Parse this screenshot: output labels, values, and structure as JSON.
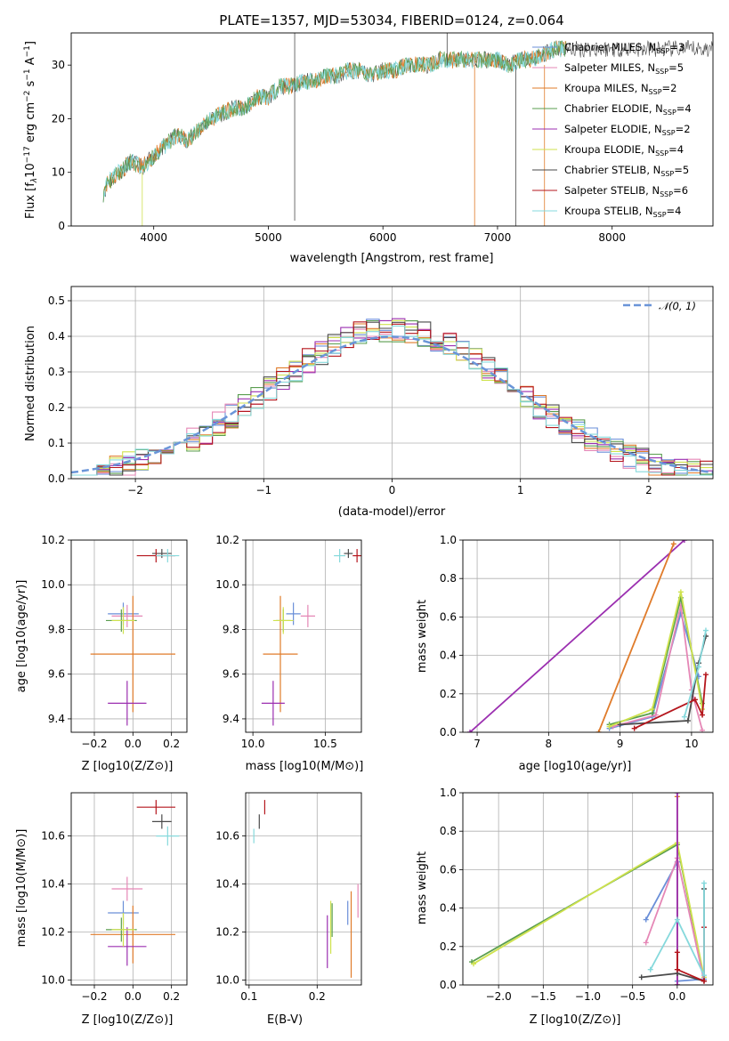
{
  "colors": {
    "chabrier_miles": "#6a8fd8",
    "salpeter_miles": "#e587b6",
    "kroupa_miles": "#e07b2a",
    "chabrier_elodie": "#5a9e4f",
    "salpeter_elodie": "#9b2fb0",
    "kroupa_elodie": "#cfe24e",
    "chabrier_stelib": "#4a4a4a",
    "salpeter_stelib": "#b5161d",
    "kroupa_stelib": "#86d9dc",
    "gauss": "#6a95d8",
    "grid": "#b0b0b0"
  },
  "chart_data": [
    {
      "id": "spectrum",
      "type": "line",
      "title": "PLATE=1357, MJD=53034, FIBERID=0124, z=0.064",
      "xlabel": "wavelength [Angstrom, rest frame]",
      "ylabel": "Flux [f",
      "ylabel_parts": [
        "Flux [f",
        "λ",
        "10",
        "−17",
        " erg cm",
        "−2",
        " s",
        "−1",
        " A",
        "−1",
        "]"
      ],
      "xlim": [
        3280,
        8880
      ],
      "ylim": [
        0,
        36
      ],
      "xticks": [
        4000,
        5000,
        6000,
        7000,
        8000
      ],
      "yticks": [
        0,
        10,
        20,
        30
      ],
      "grid": false,
      "legend_position": "right",
      "x": [
        3560,
        3600,
        3700,
        3800,
        3900,
        4000,
        4100,
        4200,
        4300,
        4400,
        4500,
        4600,
        4700,
        4800,
        4900,
        5000,
        5100,
        5200,
        5300,
        5400,
        5500,
        5600,
        5700,
        5800,
        5900,
        6000,
        6100,
        6200,
        6300,
        6400,
        6500,
        6600,
        6700,
        6800,
        6900,
        7000,
        7100,
        7200,
        7300,
        7400,
        7500,
        7600
      ],
      "y": [
        6,
        8,
        10,
        12,
        11,
        13,
        15,
        17,
        16,
        18,
        20,
        21,
        22,
        22,
        24,
        24,
        26,
        26,
        27,
        27,
        28,
        28,
        29,
        29,
        28,
        29,
        29,
        30,
        30,
        30,
        31,
        31,
        31,
        31,
        31,
        31,
        30,
        31,
        31,
        32,
        33,
        33
      ],
      "legend": [
        {
          "pre": "Chabrier MILES, N",
          "sub": "SSP",
          "post": "=3",
          "color": "chabrier_miles"
        },
        {
          "pre": "Salpeter MILES, N",
          "sub": "SSP",
          "post": "=5",
          "color": "salpeter_miles"
        },
        {
          "pre": "Kroupa MILES, N",
          "sub": "SSP",
          "post": "=2",
          "color": "kroupa_miles"
        },
        {
          "pre": "Chabrier ELODIE, N",
          "sub": "SSP",
          "post": "=4",
          "color": "chabrier_elodie"
        },
        {
          "pre": "Salpeter ELODIE, N",
          "sub": "SSP",
          "post": "=2",
          "color": "salpeter_elodie"
        },
        {
          "pre": "Kroupa ELODIE, N",
          "sub": "SSP",
          "post": "=4",
          "color": "kroupa_elodie"
        },
        {
          "pre": "Chabrier STELIB, N",
          "sub": "SSP",
          "post": "=5",
          "color": "chabrier_stelib"
        },
        {
          "pre": "Salpeter STELIB, N",
          "sub": "SSP",
          "post": "=6",
          "color": "salpeter_stelib"
        },
        {
          "pre": "Kroupa STELIB, N",
          "sub": "SSP",
          "post": "=4",
          "color": "kroupa_stelib"
        }
      ]
    },
    {
      "id": "residuals",
      "type": "bar",
      "xlabel": "(data-model)/error",
      "ylabel": "Normed distribution",
      "xlim": [
        -2.5,
        2.5
      ],
      "ylim": [
        0,
        0.54
      ],
      "xticks": [
        -2,
        -1,
        0,
        1,
        2
      ],
      "xtick_labels": [
        "−2",
        "−1",
        "0",
        "1",
        "2"
      ],
      "yticks": [
        0.0,
        0.1,
        0.2,
        0.3,
        0.4,
        0.5
      ],
      "ytick_labels": [
        "0.0",
        "0.1",
        "0.2",
        "0.3",
        "0.4",
        "0.5"
      ],
      "grid": true,
      "legend_position": "top-right",
      "gauss_label": "𝒩(0, 1)",
      "bin_width": 0.1,
      "bin_start": -2.5
    },
    {
      "id": "age_vs_Z",
      "type": "scatter",
      "xlabel": "Z [log10(Z/Z⊙)]",
      "ylabel": "age  [log10(age/yr)]",
      "xlim": [
        -0.32,
        0.28
      ],
      "ylim": [
        9.34,
        10.2
      ],
      "xticks": [
        -0.2,
        0.0,
        0.2
      ],
      "xtick_labels": [
        "−0.2",
        "0.0",
        "0.2"
      ],
      "yticks": [
        9.4,
        9.6,
        9.8,
        10.0,
        10.2
      ],
      "ytick_labels": [
        "9.4",
        "9.6",
        "9.8",
        "10.0",
        "10.2"
      ],
      "grid": true,
      "points": [
        {
          "x": -0.05,
          "xerr": 0.08,
          "y": 9.87,
          "yerr": 0.05,
          "color": "chabrier_miles"
        },
        {
          "x": -0.03,
          "xerr": 0.08,
          "y": 9.86,
          "yerr": 0.05,
          "color": "salpeter_miles"
        },
        {
          "x": 0.0,
          "xerr": 0.22,
          "y": 9.69,
          "yerr": 0.26,
          "color": "kroupa_miles"
        },
        {
          "x": -0.06,
          "xerr": 0.08,
          "y": 9.84,
          "yerr": 0.05,
          "color": "chabrier_elodie"
        },
        {
          "x": -0.03,
          "xerr": 0.1,
          "y": 9.47,
          "yerr": 0.1,
          "color": "salpeter_elodie"
        },
        {
          "x": -0.05,
          "xerr": 0.06,
          "y": 9.84,
          "yerr": 0.06,
          "color": "kroupa_elodie"
        },
        {
          "x": 0.15,
          "xerr": 0.05,
          "y": 10.14,
          "yerr": 0.02,
          "color": "chabrier_stelib"
        },
        {
          "x": 0.12,
          "xerr": 0.1,
          "y": 10.13,
          "yerr": 0.03,
          "color": "salpeter_stelib"
        },
        {
          "x": 0.18,
          "xerr": 0.06,
          "y": 10.13,
          "yerr": 0.03,
          "color": "kroupa_stelib"
        }
      ]
    },
    {
      "id": "age_vs_mass",
      "type": "scatter",
      "xlabel": "mass [log10(M/M⊙)]",
      "ylabel": "",
      "xlim": [
        9.95,
        10.75
      ],
      "ylim": [
        9.34,
        10.2
      ],
      "xticks": [
        10.0,
        10.5
      ],
      "xtick_labels": [
        "10.0",
        "10.5"
      ],
      "yticks": [
        9.4,
        9.6,
        9.8,
        10.0,
        10.2
      ],
      "ytick_labels": [
        "9.4",
        "9.6",
        "9.8",
        "10.0",
        "10.2"
      ],
      "grid": true,
      "points": [
        {
          "x": 10.28,
          "xerr": 0.05,
          "y": 9.87,
          "yerr": 0.05,
          "color": "chabrier_miles"
        },
        {
          "x": 10.38,
          "xerr": 0.05,
          "y": 9.86,
          "yerr": 0.05,
          "color": "salpeter_miles"
        },
        {
          "x": 10.19,
          "xerr": 0.12,
          "y": 9.69,
          "yerr": 0.26,
          "color": "kroupa_miles"
        },
        {
          "x": 10.21,
          "xerr": 0.05,
          "y": 9.84,
          "yerr": 0.05,
          "color": "chabrier_elodie"
        },
        {
          "x": 10.14,
          "xerr": 0.08,
          "y": 9.47,
          "yerr": 0.1,
          "color": "salpeter_elodie"
        },
        {
          "x": 10.21,
          "xerr": 0.07,
          "y": 9.84,
          "yerr": 0.06,
          "color": "kroupa_elodie"
        },
        {
          "x": 10.66,
          "xerr": 0.03,
          "y": 10.14,
          "yerr": 0.02,
          "color": "chabrier_stelib"
        },
        {
          "x": 10.72,
          "xerr": 0.03,
          "y": 10.13,
          "yerr": 0.03,
          "color": "salpeter_stelib"
        },
        {
          "x": 10.6,
          "xerr": 0.04,
          "y": 10.13,
          "yerr": 0.03,
          "color": "kroupa_stelib"
        }
      ]
    },
    {
      "id": "weight_vs_age",
      "type": "line",
      "xlabel": "age  [log10(age/yr)]",
      "ylabel": "mass weight",
      "xlim": [
        6.8,
        10.3
      ],
      "ylim": [
        0,
        1.0
      ],
      "xticks": [
        7,
        8,
        9,
        10
      ],
      "xtick_labels": [
        "7",
        "8",
        "9",
        "10"
      ],
      "yticks": [
        0.0,
        0.2,
        0.4,
        0.6,
        0.8,
        1.0
      ],
      "ytick_labels": [
        "0.0",
        "0.2",
        "0.4",
        "0.6",
        "0.8",
        "1.0"
      ],
      "grid": true,
      "series": [
        {
          "color": "salpeter_elodie",
          "x": [
            6.9,
            9.9
          ],
          "y": [
            0.0,
            1.0
          ]
        },
        {
          "color": "kroupa_miles",
          "x": [
            8.7,
            9.75
          ],
          "y": [
            0.0,
            0.98
          ]
        },
        {
          "color": "chabrier_miles",
          "x": [
            8.85,
            9.45,
            9.85,
            10.1
          ],
          "y": [
            0.02,
            0.08,
            0.62,
            0.29
          ]
        },
        {
          "color": "salpeter_miles",
          "x": [
            8.9,
            9.5,
            9.85,
            10.0,
            10.15
          ],
          "y": [
            0.03,
            0.09,
            0.66,
            0.22,
            0.01
          ]
        },
        {
          "color": "chabrier_elodie",
          "x": [
            8.85,
            9.45,
            9.85,
            10.15
          ],
          "y": [
            0.04,
            0.1,
            0.7,
            0.15
          ]
        },
        {
          "color": "kroupa_elodie",
          "x": [
            8.85,
            9.45,
            9.85,
            10.15
          ],
          "y": [
            0.03,
            0.12,
            0.73,
            0.12
          ]
        },
        {
          "color": "chabrier_stelib",
          "x": [
            9.0,
            9.95,
            10.1,
            10.2
          ],
          "y": [
            0.04,
            0.06,
            0.36,
            0.5
          ]
        },
        {
          "color": "salpeter_stelib",
          "x": [
            9.2,
            10.05,
            10.15,
            10.2
          ],
          "y": [
            0.02,
            0.17,
            0.09,
            0.3
          ]
        },
        {
          "color": "kroupa_stelib",
          "x": [
            9.9,
            10.1,
            10.2
          ],
          "y": [
            0.08,
            0.34,
            0.53
          ]
        }
      ]
    },
    {
      "id": "mass_vs_Z",
      "type": "scatter",
      "xlabel": "Z [log10(Z/Z⊙)]",
      "ylabel": "mass [log10(M/M⊙)]",
      "xlim": [
        -0.32,
        0.28
      ],
      "ylim": [
        9.98,
        10.78
      ],
      "xticks": [
        -0.2,
        0.0,
        0.2
      ],
      "xtick_labels": [
        "−0.2",
        "0.0",
        "0.2"
      ],
      "yticks": [
        10.0,
        10.2,
        10.4,
        10.6
      ],
      "ytick_labels": [
        "10.0",
        "10.2",
        "10.4",
        "10.6"
      ],
      "grid": true,
      "points": [
        {
          "x": -0.05,
          "xerr": 0.08,
          "y": 10.28,
          "yerr": 0.05,
          "color": "chabrier_miles"
        },
        {
          "x": -0.03,
          "xerr": 0.08,
          "y": 10.38,
          "yerr": 0.05,
          "color": "salpeter_miles"
        },
        {
          "x": 0.0,
          "xerr": 0.22,
          "y": 10.19,
          "yerr": 0.12,
          "color": "kroupa_miles"
        },
        {
          "x": -0.06,
          "xerr": 0.08,
          "y": 10.21,
          "yerr": 0.05,
          "color": "chabrier_elodie"
        },
        {
          "x": -0.03,
          "xerr": 0.1,
          "y": 10.14,
          "yerr": 0.08,
          "color": "salpeter_elodie"
        },
        {
          "x": -0.05,
          "xerr": 0.06,
          "y": 10.21,
          "yerr": 0.07,
          "color": "kroupa_elodie"
        },
        {
          "x": 0.15,
          "xerr": 0.05,
          "y": 10.66,
          "yerr": 0.03,
          "color": "chabrier_stelib"
        },
        {
          "x": 0.12,
          "xerr": 0.1,
          "y": 10.72,
          "yerr": 0.03,
          "color": "salpeter_stelib"
        },
        {
          "x": 0.18,
          "xerr": 0.06,
          "y": 10.6,
          "yerr": 0.04,
          "color": "kroupa_stelib"
        }
      ]
    },
    {
      "id": "mass_vs_ebv",
      "type": "scatter",
      "xlabel": "E(B-V)",
      "ylabel": "",
      "xlim": [
        0.095,
        0.265
      ],
      "ylim": [
        9.98,
        10.78
      ],
      "xticks": [
        0.1,
        0.2
      ],
      "xtick_labels": [
        "0.1",
        "0.2"
      ],
      "yticks": [
        10.0,
        10.2,
        10.4,
        10.6
      ],
      "ytick_labels": [
        "10.0",
        "10.2",
        "10.4",
        "10.6"
      ],
      "grid": true,
      "points": [
        {
          "x": 0.245,
          "xerr": 0.0,
          "y": 10.28,
          "yerr": 0.05,
          "color": "chabrier_miles"
        },
        {
          "x": 0.26,
          "xerr": 0.0,
          "y": 10.33,
          "yerr": 0.07,
          "color": "salpeter_miles"
        },
        {
          "x": 0.25,
          "xerr": 0.0,
          "y": 10.19,
          "yerr": 0.18,
          "color": "kroupa_miles"
        },
        {
          "x": 0.222,
          "xerr": 0.0,
          "y": 10.25,
          "yerr": 0.07,
          "color": "chabrier_elodie"
        },
        {
          "x": 0.215,
          "xerr": 0.0,
          "y": 10.16,
          "yerr": 0.11,
          "color": "salpeter_elodie"
        },
        {
          "x": 0.22,
          "xerr": 0.0,
          "y": 10.22,
          "yerr": 0.11,
          "color": "kroupa_elodie"
        },
        {
          "x": 0.115,
          "xerr": 0.0,
          "y": 10.66,
          "yerr": 0.03,
          "color": "chabrier_stelib"
        },
        {
          "x": 0.123,
          "xerr": 0.0,
          "y": 10.72,
          "yerr": 0.03,
          "color": "salpeter_stelib"
        },
        {
          "x": 0.107,
          "xerr": 0.0,
          "y": 10.6,
          "yerr": 0.03,
          "color": "kroupa_stelib"
        }
      ]
    },
    {
      "id": "weight_vs_Z",
      "type": "line",
      "xlabel": "Z [log10(Z/Z⊙)]",
      "ylabel": "mass weight",
      "xlim": [
        -2.4,
        0.4
      ],
      "ylim": [
        0,
        1.0
      ],
      "xticks": [
        -2.0,
        -1.5,
        -1.0,
        -0.5,
        0.0
      ],
      "xtick_labels": [
        "−2.0",
        "−1.5",
        "−1.0",
        "−0.5",
        "0.0"
      ],
      "yticks": [
        0.0,
        0.2,
        0.4,
        0.6,
        0.8,
        1.0
      ],
      "ytick_labels": [
        "0.0",
        "0.2",
        "0.4",
        "0.6",
        "0.8",
        "1.0"
      ],
      "grid": true,
      "series": [
        {
          "color": "chabrier_elodie",
          "x": [
            -2.3,
            0.0,
            0.3
          ],
          "y": [
            0.12,
            0.73,
            0.03
          ]
        },
        {
          "color": "kroupa_elodie",
          "x": [
            -2.28,
            0.0,
            0.3
          ],
          "y": [
            0.11,
            0.74,
            0.04
          ]
        },
        {
          "color": "chabrier_miles",
          "x": [
            -0.35,
            0.0,
            0.0,
            0.3
          ],
          "y": [
            0.34,
            0.64,
            0.02,
            0.03
          ]
        },
        {
          "color": "salpeter_miles",
          "x": [
            -0.35,
            0.0,
            0.3
          ],
          "y": [
            0.22,
            0.66,
            0.02
          ]
        },
        {
          "color": "kroupa_miles",
          "x": [
            0.0,
            0.0
          ],
          "y": [
            0.0,
            0.98
          ]
        },
        {
          "color": "salpeter_elodie",
          "x": [
            0.0,
            0.0
          ],
          "y": [
            0.0,
            1.0
          ]
        },
        {
          "color": "chabrier_stelib",
          "x": [
            -0.4,
            0.0,
            0.3,
            0.3
          ],
          "y": [
            0.04,
            0.06,
            0.02,
            0.5
          ]
        },
        {
          "color": "salpeter_stelib",
          "x": [
            0.0,
            0.0,
            0.3,
            0.3
          ],
          "y": [
            0.17,
            0.08,
            0.02,
            0.3
          ]
        },
        {
          "color": "kroupa_stelib",
          "x": [
            -0.3,
            0.0,
            0.3,
            0.3
          ],
          "y": [
            0.08,
            0.34,
            0.05,
            0.53
          ]
        }
      ]
    }
  ]
}
